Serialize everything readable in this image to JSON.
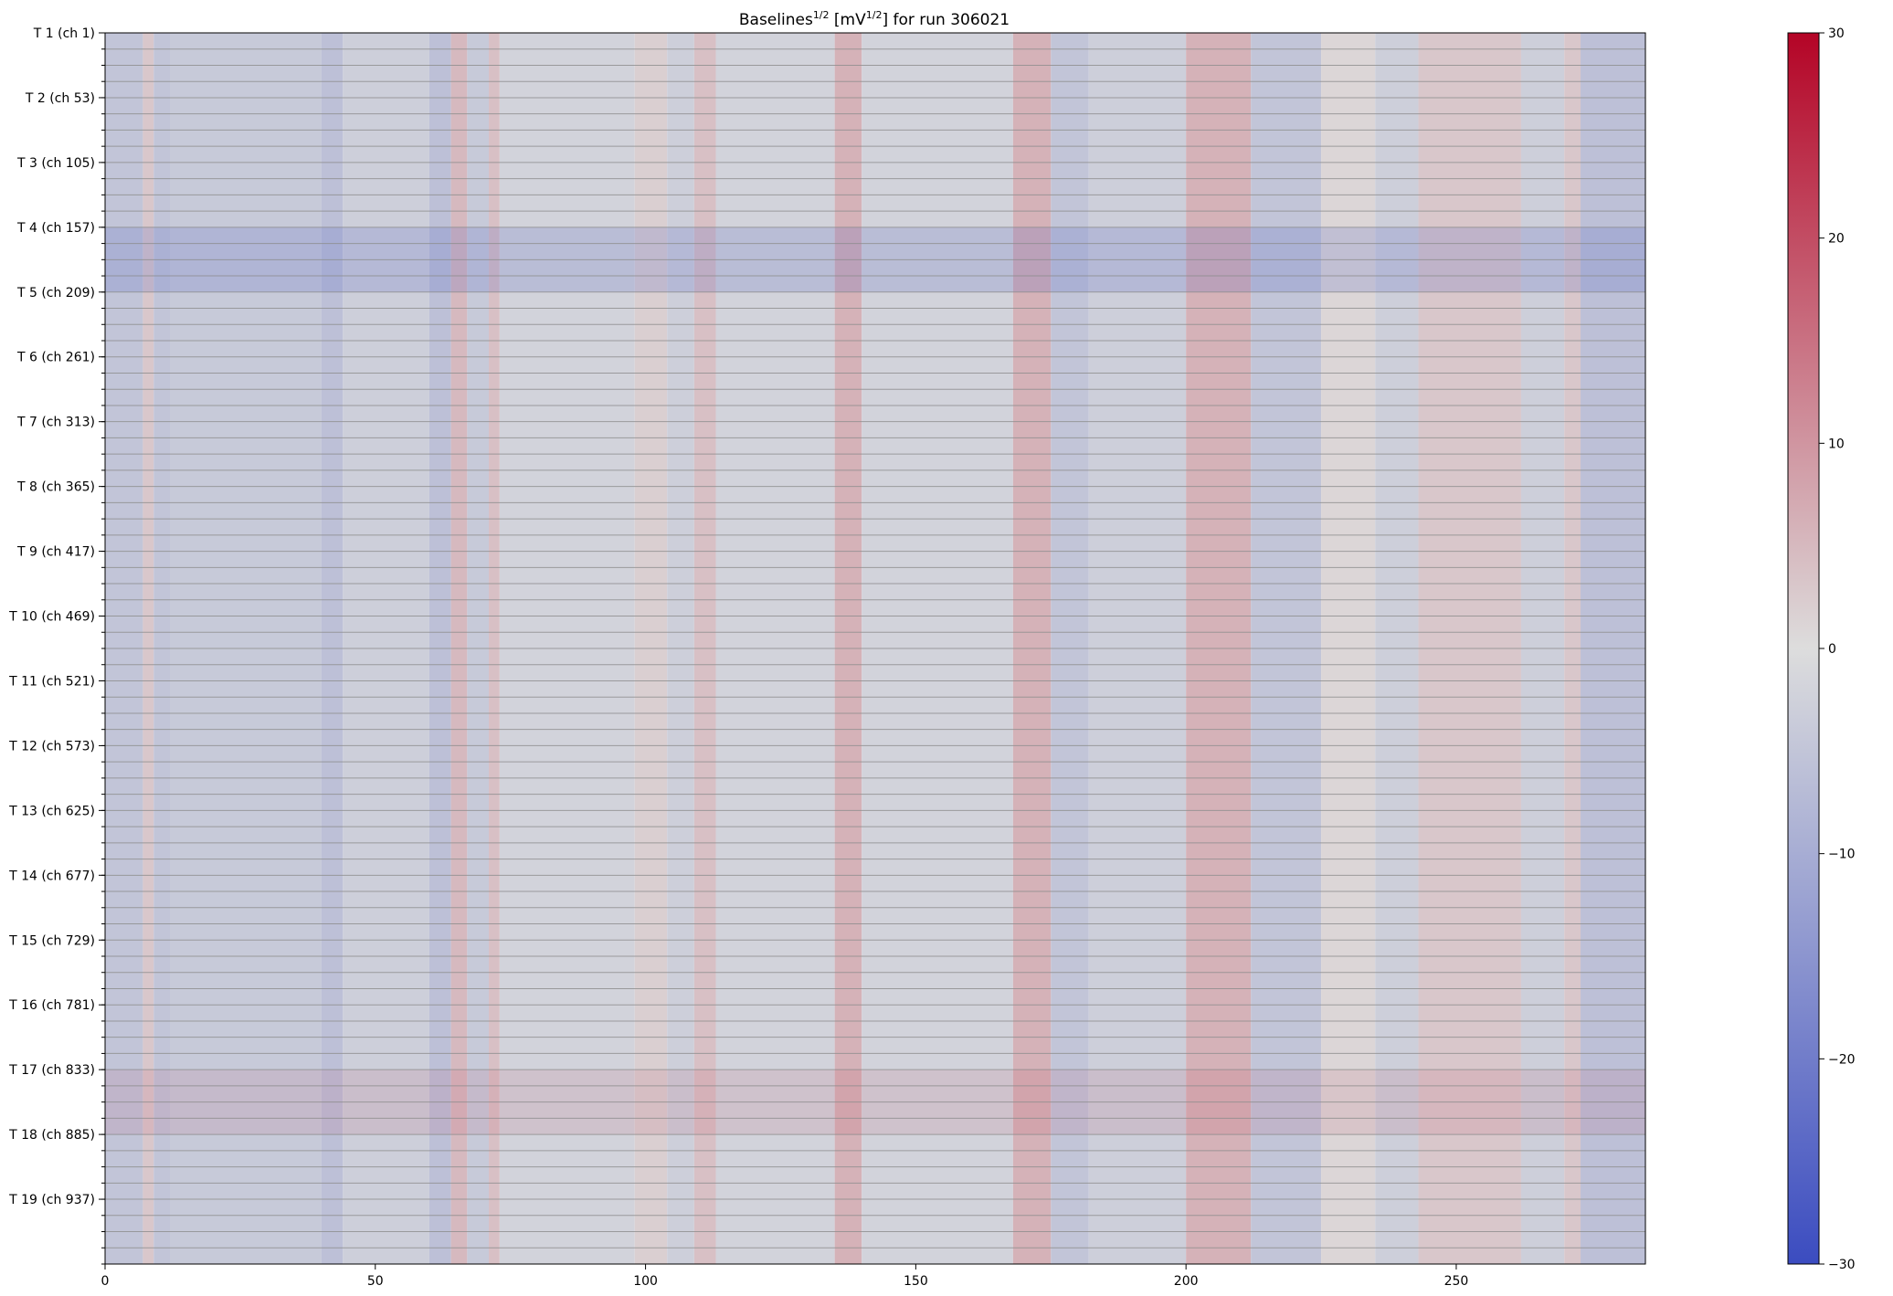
{
  "chart_data": {
    "type": "heatmap",
    "title": "Baselines",
    "title_sup_1": "1/2",
    "title_mid": " [mV",
    "title_sup_2": "1/2",
    "title_end": "] for run 306021",
    "colormap": "coolwarm",
    "colormap_low": "#3b4cc0",
    "colormap_mid": "#dddddd",
    "colormap_high": "#b40426",
    "xlim": [
      0,
      285
    ],
    "x_ticks": [
      0,
      50,
      100,
      150,
      200,
      250
    ],
    "x_tick_labels": [
      "0",
      "50",
      "100",
      "150",
      "200",
      "250"
    ],
    "y_tick_labels": [
      "T 1 (ch 1)",
      "T 2 (ch 53)",
      "T 3 (ch 105)",
      "T 4 (ch 157)",
      "T 5 (ch 209)",
      "T 6 (ch 261)",
      "T 7 (ch 313)",
      "T 8 (ch 365)",
      "T 9 (ch 417)",
      "T 10 (ch 469)",
      "T 11 (ch 521)",
      "T 12 (ch 573)",
      "T 13 (ch 625)",
      "T 14 (ch 677)",
      "T 15 (ch 729)",
      "T 16 (ch 781)",
      "T 17 (ch 833)",
      "T 18 (ch 885)",
      "T 19 (ch 937)"
    ],
    "towers": 19,
    "channels_per_tower": 52,
    "colorbar": {
      "range": [
        -30,
        30
      ],
      "ticks": [
        30,
        20,
        10,
        0,
        -10,
        -20,
        -30
      ],
      "tick_labels": [
        "30",
        "20",
        "10",
        "0",
        "−10",
        "−20",
        "−30"
      ]
    },
    "column_profile": [
      {
        "from": 0,
        "to": 7,
        "value": -5
      },
      {
        "from": 7,
        "to": 9,
        "value": 3
      },
      {
        "from": 9,
        "to": 12,
        "value": -5
      },
      {
        "from": 12,
        "to": 40,
        "value": -4
      },
      {
        "from": 40,
        "to": 44,
        "value": -6
      },
      {
        "from": 44,
        "to": 60,
        "value": -3
      },
      {
        "from": 60,
        "to": 64,
        "value": -6
      },
      {
        "from": 64,
        "to": 67,
        "value": 5
      },
      {
        "from": 67,
        "to": 71,
        "value": -4
      },
      {
        "from": 71,
        "to": 73,
        "value": 4
      },
      {
        "from": 73,
        "to": 98,
        "value": -2
      },
      {
        "from": 98,
        "to": 104,
        "value": 2
      },
      {
        "from": 104,
        "to": 109,
        "value": -3
      },
      {
        "from": 109,
        "to": 113,
        "value": 4
      },
      {
        "from": 113,
        "to": 135,
        "value": -2
      },
      {
        "from": 135,
        "to": 140,
        "value": 6
      },
      {
        "from": 140,
        "to": 168,
        "value": -2
      },
      {
        "from": 168,
        "to": 175,
        "value": 6
      },
      {
        "from": 175,
        "to": 182,
        "value": -5
      },
      {
        "from": 182,
        "to": 200,
        "value": -3
      },
      {
        "from": 200,
        "to": 212,
        "value": 6
      },
      {
        "from": 212,
        "to": 225,
        "value": -5
      },
      {
        "from": 225,
        "to": 235,
        "value": 1
      },
      {
        "from": 235,
        "to": 243,
        "value": -3
      },
      {
        "from": 243,
        "to": 262,
        "value": 3
      },
      {
        "from": 262,
        "to": 270,
        "value": -3
      },
      {
        "from": 270,
        "to": 273,
        "value": 3
      },
      {
        "from": 273,
        "to": 285,
        "value": -6
      }
    ],
    "tower_offsets": [
      {
        "tower": 4,
        "value": -2
      },
      {
        "tower": 17,
        "value": 1
      }
    ]
  }
}
